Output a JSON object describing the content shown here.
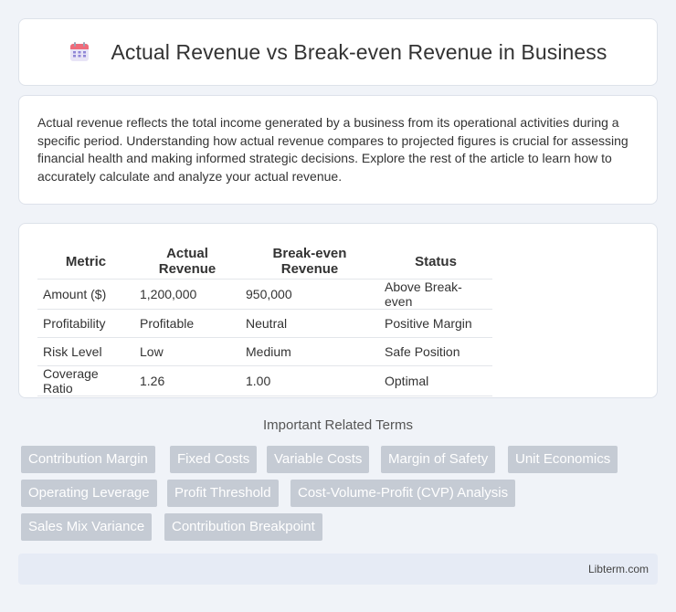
{
  "header": {
    "title": "Actual Revenue vs Break-even Revenue in Business",
    "icon": "calendar-icon"
  },
  "intro": {
    "text": "Actual revenue reflects the total income generated by a business from its operational activities during a specific period. Understanding how actual revenue compares to projected figures is crucial for assessing financial health and making informed strategic decisions. Explore the rest of the article to learn how to accurately calculate and analyze your actual revenue."
  },
  "table": {
    "headers": [
      "Metric",
      "Actual Revenue",
      "Break-even Revenue",
      "Status"
    ],
    "rows": [
      [
        "Amount ($)",
        "1,200,000",
        "950,000",
        "Above Break-even"
      ],
      [
        "Profitability",
        "Profitable",
        "Neutral",
        "Positive Margin"
      ],
      [
        "Risk Level",
        "Low",
        "Medium",
        "Safe Position"
      ],
      [
        "Coverage Ratio",
        "1.26",
        "1.00",
        "Optimal"
      ]
    ]
  },
  "terms": {
    "title": "Important Related Terms",
    "items": [
      "Contribution Margin",
      "Fixed Costs",
      "Variable Costs",
      "Margin of Safety",
      "Unit Economics",
      "Operating Leverage",
      "Profit Threshold",
      "Cost-Volume-Profit (CVP) Analysis",
      "Sales Mix Variance",
      "Contribution Breakpoint"
    ]
  },
  "footer": {
    "site": "Libterm.com"
  },
  "colors": {
    "background": "#f0f3f8",
    "tag": "#c5cbd4",
    "footer": "#e6ebf5"
  }
}
